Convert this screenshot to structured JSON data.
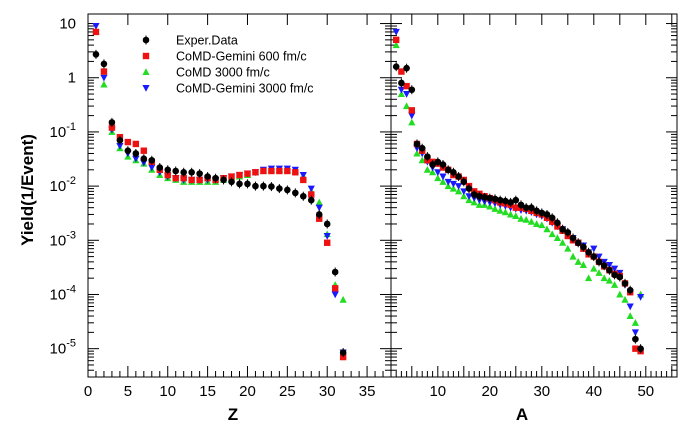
{
  "chart_data": {
    "type": "scatter",
    "ylabel": "Yield(1/Event)",
    "yscale": "log",
    "ylim": [
      3e-06,
      15
    ],
    "yticks": [
      {
        "value": 10,
        "label": "10"
      },
      {
        "value": 1,
        "label": "1"
      },
      {
        "value": 0.1,
        "label": "10",
        "exp": "-1"
      },
      {
        "value": 0.01,
        "label": "10",
        "exp": "-2"
      },
      {
        "value": 0.001,
        "label": "10",
        "exp": "-3"
      },
      {
        "value": 0.0001,
        "label": "10",
        "exp": "-4"
      },
      {
        "value": 1e-05,
        "label": "10",
        "exp": "-5"
      }
    ],
    "legend": {
      "placement": "top-left of left panel",
      "entries": [
        {
          "name": "Exper.Data",
          "marker": "circle-errorbar",
          "color": "#000000"
        },
        {
          "name": "CoMD-Gemini 600 fm/c",
          "marker": "square",
          "color": "#ee1111"
        },
        {
          "name": "CoMD 3000 fm/c",
          "marker": "triangle-up",
          "color": "#22dd22"
        },
        {
          "name": "CoMD-Gemini 3000 fm/c",
          "marker": "triangle-down",
          "color": "#1a1aff"
        }
      ]
    },
    "panels": [
      {
        "xlabel": "Z",
        "xlim": [
          0,
          38
        ],
        "xticks": [
          0,
          5,
          10,
          15,
          20,
          25,
          30,
          35
        ],
        "series": [
          {
            "name": "Exper.Data",
            "x": [
              1,
              2,
              3,
              4,
              5,
              6,
              7,
              8,
              9,
              10,
              11,
              12,
              13,
              14,
              15,
              16,
              17,
              18,
              19,
              20,
              21,
              22,
              23,
              24,
              25,
              26,
              27,
              28,
              29,
              30,
              31,
              32
            ],
            "y": [
              2.7,
              1.8,
              0.15,
              0.07,
              0.045,
              0.04,
              0.032,
              0.03,
              0.022,
              0.02,
              0.019,
              0.018,
              0.018,
              0.017,
              0.015,
              0.014,
              0.013,
              0.012,
              0.011,
              0.011,
              0.01,
              0.01,
              0.0098,
              0.009,
              0.0085,
              0.0075,
              0.0065,
              0.0055,
              0.003,
              0.002,
              0.00026,
              8.5e-06
            ]
          },
          {
            "name": "CoMD-Gemini 600 fm/c",
            "x": [
              1,
              2,
              3,
              4,
              5,
              6,
              7,
              8,
              9,
              10,
              11,
              12,
              13,
              14,
              15,
              16,
              17,
              18,
              19,
              20,
              21,
              22,
              23,
              24,
              25,
              26,
              27,
              28,
              29,
              30,
              31,
              32
            ],
            "y": [
              7,
              1.3,
              0.12,
              0.08,
              0.065,
              0.06,
              0.045,
              0.028,
              0.02,
              0.016,
              0.014,
              0.014,
              0.013,
              0.013,
              0.014,
              0.013,
              0.014,
              0.015,
              0.016,
              0.017,
              0.018,
              0.019,
              0.019,
              0.019,
              0.019,
              0.018,
              0.013,
              0.007,
              0.0025,
              0.0009,
              0.00013,
              7e-06
            ]
          },
          {
            "name": "CoMD 3000 fm/c",
            "x": [
              1,
              2,
              3,
              4,
              5,
              6,
              7,
              8,
              9,
              10,
              11,
              12,
              13,
              14,
              15,
              16,
              17,
              18,
              19,
              20,
              21,
              22,
              23,
              24,
              25,
              26,
              27,
              28,
              29,
              30,
              31,
              32
            ],
            "y": [
              7,
              0.75,
              0.1,
              0.05,
              0.035,
              0.03,
              0.026,
              0.02,
              0.016,
              0.014,
              0.013,
              0.012,
              0.012,
              0.012,
              0.012,
              0.012,
              0.013,
              0.014,
              0.015,
              0.016,
              0.018,
              0.019,
              0.02,
              0.02,
              0.02,
              0.019,
              0.015,
              0.008,
              0.005,
              0.0013,
              0.00015,
              8e-05
            ]
          },
          {
            "name": "CoMD-Gemini 3000 fm/c",
            "x": [
              1,
              2,
              3,
              4,
              5,
              6,
              7,
              8,
              9,
              10,
              11,
              12,
              13,
              14,
              15,
              16,
              17,
              18,
              19,
              20,
              21,
              22,
              23,
              24,
              25,
              26,
              27,
              28,
              29,
              30,
              31,
              32
            ],
            "y": [
              9,
              1.0,
              0.11,
              0.055,
              0.04,
              0.032,
              0.027,
              0.022,
              0.018,
              0.015,
              0.014,
              0.013,
              0.013,
              0.013,
              0.013,
              0.013,
              0.014,
              0.015,
              0.016,
              0.017,
              0.018,
              0.02,
              0.021,
              0.021,
              0.021,
              0.02,
              0.016,
              0.009,
              0.004,
              0.0012,
              0.0001,
              8.5e-06
            ]
          }
        ]
      },
      {
        "xlabel": "A",
        "xlim": [
          1,
          56
        ],
        "xticks": [
          10,
          20,
          30,
          40,
          50
        ],
        "series": [
          {
            "name": "Exper.Data",
            "x": [
              2,
              3,
              4,
              5,
              6,
              7,
              8,
              9,
              10,
              11,
              12,
              13,
              14,
              15,
              16,
              17,
              18,
              19,
              20,
              21,
              22,
              23,
              24,
              25,
              26,
              27,
              28,
              29,
              30,
              31,
              32,
              33,
              34,
              35,
              36,
              37,
              38,
              39,
              40,
              41,
              42,
              43,
              44,
              45,
              46,
              47,
              48,
              49
            ],
            "y": [
              1.6,
              0.8,
              1.5,
              0.6,
              0.06,
              0.05,
              0.035,
              0.025,
              0.028,
              0.025,
              0.02,
              0.018,
              0.015,
              0.012,
              0.009,
              0.007,
              0.0065,
              0.0062,
              0.006,
              0.0058,
              0.0055,
              0.0053,
              0.005,
              0.0055,
              0.0045,
              0.004,
              0.004,
              0.0035,
              0.0032,
              0.003,
              0.0026,
              0.0021,
              0.0016,
              0.0014,
              0.0011,
              0.0009,
              0.00075,
              0.0006,
              0.0005,
              0.0004,
              0.00034,
              0.00028,
              0.00023,
              0.00021,
              0.00016,
              0.00012,
              1.5e-05,
              1e-05
            ]
          },
          {
            "name": "CoMD-Gemini 600 fm/c",
            "x": [
              2,
              3,
              4,
              5,
              6,
              7,
              8,
              9,
              10,
              11,
              12,
              13,
              14,
              15,
              16,
              17,
              18,
              19,
              20,
              21,
              22,
              23,
              24,
              25,
              26,
              27,
              28,
              29,
              30,
              31,
              32,
              33,
              34,
              35,
              36,
              37,
              38,
              39,
              40,
              41,
              42,
              43,
              44,
              45,
              46,
              47,
              48,
              49
            ],
            "y": [
              5,
              1.3,
              0.7,
              0.25,
              0.06,
              0.045,
              0.03,
              0.028,
              0.026,
              0.022,
              0.02,
              0.016,
              0.015,
              0.013,
              0.01,
              0.008,
              0.0072,
              0.0065,
              0.006,
              0.0055,
              0.005,
              0.0048,
              0.0045,
              0.004,
              0.004,
              0.0038,
              0.0035,
              0.0032,
              0.003,
              0.0026,
              0.0022,
              0.0018,
              0.0015,
              0.0012,
              0.001,
              0.0009,
              0.0007,
              0.00055,
              0.0005,
              0.0004,
              0.00033,
              0.00028,
              0.00024,
              0.00022,
              0.00016,
              0.00011,
              1e-05,
              9e-06
            ]
          },
          {
            "name": "CoMD 3000 fm/c",
            "x": [
              2,
              3,
              4,
              5,
              6,
              7,
              8,
              9,
              10,
              11,
              12,
              13,
              14,
              15,
              16,
              17,
              18,
              19,
              20,
              21,
              22,
              23,
              24,
              25,
              26,
              27,
              28,
              29,
              30,
              31,
              32,
              33,
              34,
              35,
              36,
              37,
              38,
              39,
              40,
              41,
              42,
              43,
              44,
              45,
              46,
              47,
              48,
              49
            ],
            "y": [
              4,
              0.5,
              0.3,
              0.15,
              0.04,
              0.03,
              0.02,
              0.018,
              0.014,
              0.012,
              0.01,
              0.009,
              0.008,
              0.0065,
              0.0055,
              0.005,
              0.0045,
              0.0045,
              0.0042,
              0.0038,
              0.0035,
              0.0033,
              0.003,
              0.0028,
              0.0025,
              0.0024,
              0.0022,
              0.002,
              0.0019,
              0.0016,
              0.0013,
              0.0011,
              0.0009,
              0.0007,
              0.0005,
              0.0004,
              0.00035,
              0.0002,
              0.0003,
              0.00025,
              0.0002,
              0.00018,
              0.00015,
              0.0001,
              8e-05,
              4e-05,
              3e-05,
              0.0001
            ]
          },
          {
            "name": "CoMD-Gemini 3000 fm/c",
            "x": [
              2,
              3,
              4,
              5,
              6,
              7,
              8,
              9,
              10,
              11,
              12,
              13,
              14,
              15,
              16,
              17,
              18,
              19,
              20,
              21,
              22,
              23,
              24,
              25,
              26,
              27,
              28,
              29,
              30,
              31,
              32,
              33,
              34,
              35,
              36,
              37,
              38,
              39,
              40,
              41,
              42,
              43,
              44,
              45,
              46,
              47,
              48,
              49
            ],
            "y": [
              7,
              0.6,
              0.5,
              0.2,
              0.05,
              0.04,
              0.028,
              0.022,
              0.018,
              0.015,
              0.012,
              0.011,
              0.01,
              0.008,
              0.0065,
              0.006,
              0.0055,
              0.0052,
              0.005,
              0.0048,
              0.0045,
              0.0043,
              0.004,
              0.0038,
              0.0036,
              0.0035,
              0.0033,
              0.003,
              0.0028,
              0.0025,
              0.0021,
              0.0018,
              0.0016,
              0.0013,
              0.0011,
              0.0009,
              0.0008,
              0.0006,
              0.0007,
              0.0005,
              0.0004,
              0.00035,
              0.0003,
              0.00025,
              0.00015,
              6e-05,
              2e-05,
              9e-05
            ]
          }
        ]
      }
    ]
  }
}
